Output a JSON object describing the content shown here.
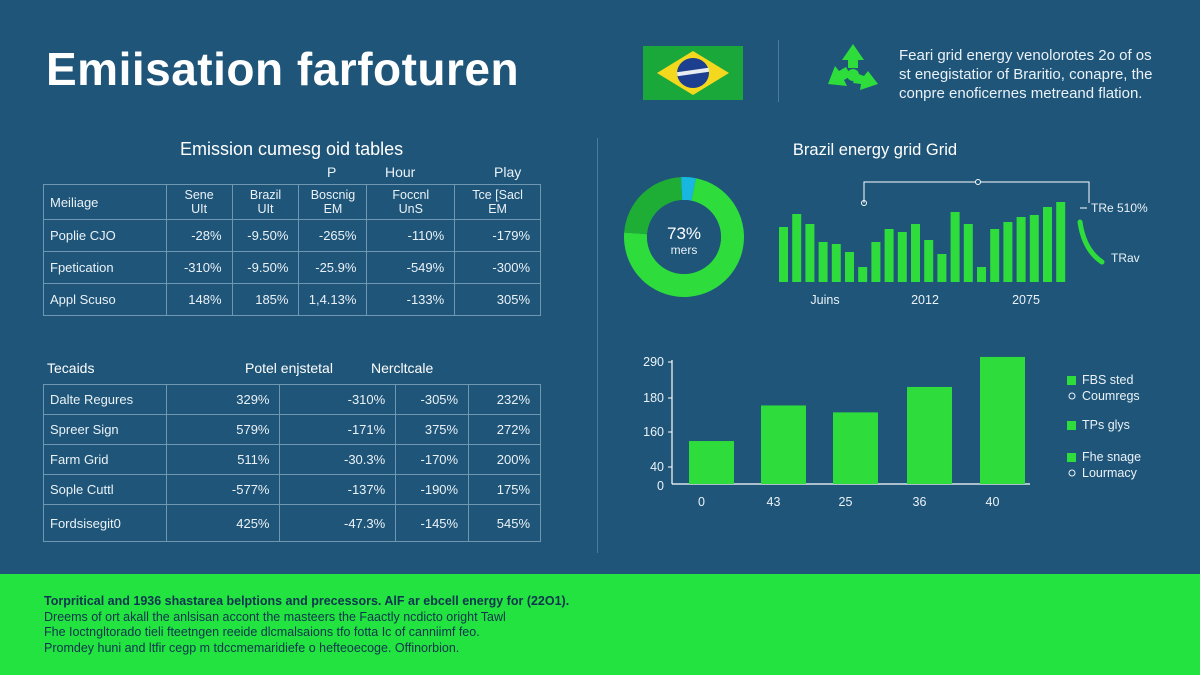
{
  "header": {
    "title": "Emiisation farfoturen",
    "note_lines": [
      "Feari grid energy venolorotes 2o of os",
      "st enegistatior of Braritio, conapre, the",
      "conpre enoficernes metreand flation."
    ]
  },
  "colors": {
    "background": "#1f5578",
    "accent_green": "#2edc3c",
    "donut_cyan": "#18b7e0",
    "bottom_band": "#22e33f"
  },
  "icons": {
    "flag": "brazil-flag-icon",
    "recycle": "recycle-icon"
  },
  "table1": {
    "title": "Emission cumesg oid tables",
    "extra_headers": [
      "P",
      "Hour",
      "Play"
    ],
    "header": [
      "Meiliage",
      "Sene\nUIt",
      "Brazil\nUIt",
      "Boscnig\nEM",
      "Foccnl\nUnS",
      "Tce [Sacl\nEM"
    ],
    "rows": [
      [
        "Poplie CJO",
        "-28%",
        "-9.50%",
        "-265%",
        "-110%",
        "-179%"
      ],
      [
        "Fpetication",
        "-310%",
        "-9.50%",
        "-25.9%",
        "-549%",
        "-300%"
      ],
      [
        "Appl Scuso",
        "148%",
        "185%",
        "1,4.13%",
        "-133%",
        "305%"
      ]
    ]
  },
  "table2": {
    "headers": [
      "Tecaids",
      "Potel enjstetal",
      "Nercltcale"
    ],
    "rows": [
      [
        "Dalte Regures",
        "329%",
        "-310%",
        "-305%",
        "232%"
      ],
      [
        "Spreer Sign",
        "579%",
        "-171%",
        "375%",
        "272%"
      ],
      [
        "Farm Grid",
        "511%",
        "-30.3%",
        "-170%",
        "200%"
      ],
      [
        "Sople Cuttl",
        "-577%",
        "-137%",
        "-190%",
        "175%"
      ],
      [
        "Fordsisegit0",
        "425%",
        "-47.3%",
        "-145%",
        "545%"
      ]
    ]
  },
  "chart_data": [
    {
      "type": "pie",
      "center_label": "73%",
      "center_sublabel": "mers",
      "slices": [
        {
          "label": "",
          "value": 73,
          "color": "#2edc3c"
        },
        {
          "label": "",
          "value": 23,
          "color": "#1fae35"
        },
        {
          "label": "",
          "value": 4,
          "color": "#18b7e0"
        }
      ]
    },
    {
      "type": "bar",
      "title": "Brazil energy grid Grid",
      "tick_labels": [
        "Juins",
        "2012",
        "2075"
      ],
      "legend": [
        "TRe 510%",
        "TRav"
      ],
      "values": [
        55,
        68,
        58,
        40,
        38,
        30,
        15,
        40,
        53,
        50,
        58,
        42,
        28,
        70,
        58,
        15,
        53,
        60,
        65,
        67,
        75,
        80
      ],
      "ylim": [
        0,
        100
      ]
    },
    {
      "type": "bar",
      "categories": [
        "0",
        "43",
        "25",
        "36",
        "40"
      ],
      "values": [
        93,
        170,
        155,
        210,
        275
      ],
      "ytick_labels": [
        "0",
        "40",
        "160",
        "180",
        "290"
      ],
      "legend": [
        [
          "FBS sted",
          "Coumregs"
        ],
        [
          "TPs glys"
        ],
        [
          "Fhe snage",
          "Lourmacy"
        ]
      ]
    }
  ],
  "footer": {
    "lines": [
      "Torpritical and 1936 shastarea belptions and precessors. AlF ar ebcell energy for (22O1).",
      "Dreems of ort akall the anlsisan accont the masteers the Faactly ncdicto oright Tawl",
      "Fhe Ioctngltorado tieli fteetngen reeide dlcmalsaions tfo fotta Ic of canniimf feo.",
      "Promdey huni and ltfir cegp m tdccmemaridiefe o hefteoecoge. Offinorbion."
    ]
  }
}
